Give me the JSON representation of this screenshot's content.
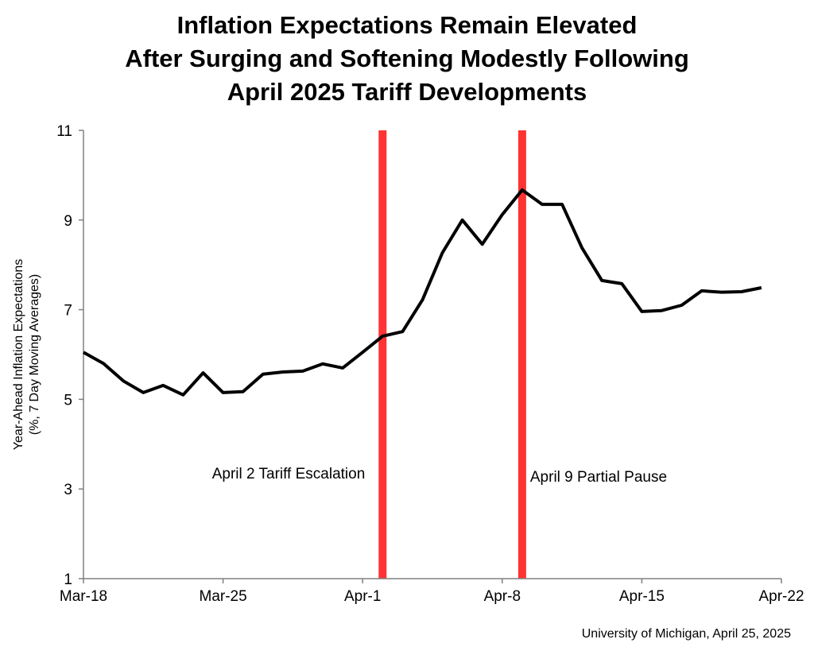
{
  "chart_data": {
    "type": "line",
    "title_lines": [
      "Inflation Expectations Remain Elevated",
      "After Surging and Softening Modestly Following",
      "April 2025 Tariff Developments"
    ],
    "ylabel_lines": [
      "Year-Ahead Inflation Expectations",
      "(%, 7 Day Moving Averages)"
    ],
    "xlabel": "",
    "ylim": [
      1,
      11
    ],
    "yticks": [
      1,
      3,
      5,
      7,
      9,
      11
    ],
    "xlim": [
      "2025-03-18",
      "2025-04-22"
    ],
    "xticks": [
      {
        "date": "2025-03-18",
        "label": "Mar-18"
      },
      {
        "date": "2025-03-25",
        "label": "Mar-25"
      },
      {
        "date": "2025-04-01",
        "label": "Apr-1"
      },
      {
        "date": "2025-04-08",
        "label": "Apr-8"
      },
      {
        "date": "2025-04-15",
        "label": "Apr-15"
      },
      {
        "date": "2025-04-22",
        "label": "Apr-22"
      }
    ],
    "grid": false,
    "line_color": "#000000",
    "series": [
      {
        "x": [
          "2025-03-18",
          "2025-03-19",
          "2025-03-20",
          "2025-03-21",
          "2025-03-22",
          "2025-03-23",
          "2025-03-24",
          "2025-03-25",
          "2025-03-26",
          "2025-03-27",
          "2025-03-28",
          "2025-03-29",
          "2025-03-30",
          "2025-03-31",
          "2025-04-01",
          "2025-04-02",
          "2025-04-03",
          "2025-04-04",
          "2025-04-05",
          "2025-04-06",
          "2025-04-07",
          "2025-04-08",
          "2025-04-09",
          "2025-04-10",
          "2025-04-11",
          "2025-04-12",
          "2025-04-13",
          "2025-04-14",
          "2025-04-15",
          "2025-04-16",
          "2025-04-17",
          "2025-04-18",
          "2025-04-19",
          "2025-04-20",
          "2025-04-21"
        ],
        "values": [
          6.05,
          5.8,
          5.41,
          5.15,
          5.31,
          5.1,
          5.59,
          5.15,
          5.17,
          5.56,
          5.61,
          5.63,
          5.79,
          5.7,
          6.05,
          6.41,
          6.51,
          7.22,
          8.27,
          9.0,
          8.46,
          9.12,
          9.67,
          9.35,
          9.35,
          8.38,
          7.65,
          7.58,
          6.96,
          6.98,
          7.1,
          7.42,
          7.39,
          7.4,
          7.49
        ]
      }
    ],
    "events": [
      {
        "date": "2025-04-02",
        "label": "April 2 Tariff Escalation",
        "color": "#ff3333"
      },
      {
        "date": "2025-04-09",
        "label": "April 9 Partial Pause",
        "color": "#ff3333"
      }
    ],
    "source": "University of Michigan, April 25, 2025"
  }
}
